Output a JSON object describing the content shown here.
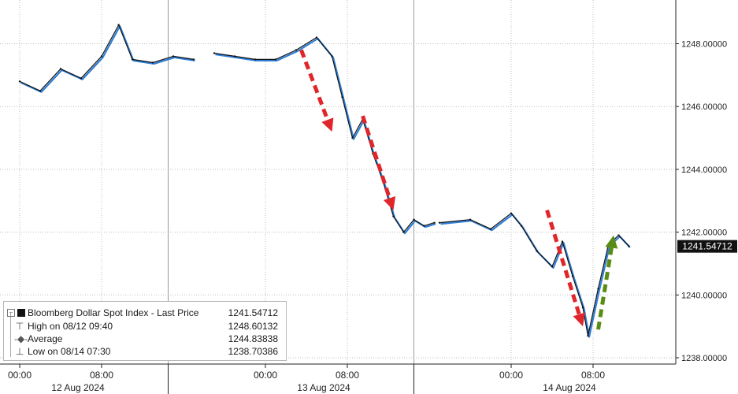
{
  "chart_data": {
    "type": "line",
    "title": "",
    "xlabel": "",
    "ylabel": "",
    "ylim": [
      1238.0,
      1249.5
    ],
    "yticks": [
      "1248.00000",
      "1246.00000",
      "1244.00000",
      "1242.00000",
      "1240.00000",
      "1238.00000"
    ],
    "ytick_values": [
      1248,
      1246,
      1244,
      1242,
      1240,
      1238
    ],
    "xtick_labels": [
      "00:00",
      "08:00",
      "00:00",
      "08:00",
      "00:00",
      "08:00"
    ],
    "date_labels": [
      "12 Aug 2024",
      "13 Aug 2024",
      "14 Aug 2024"
    ],
    "last_price_label": "1241.54712",
    "grid": true,
    "colors": {
      "price_line": "#111111",
      "price_shadow": "#2f7fd6",
      "down_arrow": "#e0262b",
      "up_arrow": "#5a8c14"
    },
    "series": [
      {
        "x": [
          "08/12 00:00",
          "08/12 02:00",
          "08/12 04:00",
          "08/12 06:00",
          "08/12 08:00",
          "08/12 09:40",
          "08/12 11:00",
          "08/12 13:00",
          "08/12 15:00",
          "08/12 17:00",
          "08/12 19:00",
          "08/12 21:00",
          "08/12 23:00",
          "08/13 01:00",
          "08/13 03:00",
          "08/13 05:00",
          "08/13 06:30",
          "08/13 07:30",
          "08/13 08:30",
          "08/13 09:30",
          "08/13 10:30",
          "08/13 11:30",
          "08/13 12:30",
          "08/13 13:30",
          "08/13 14:30",
          "08/13 15:30",
          "08/13 16:30",
          "08/13 17:00",
          "08/13 20:00",
          "08/13 22:00",
          "08/14 00:00",
          "08/14 01:00",
          "08/14 02:30",
          "08/14 04:00",
          "08/14 05:00",
          "08/14 06:00",
          "08/14 07:00",
          "08/14 07:30",
          "08/14 08:30",
          "08/14 09:30",
          "08/14 10:30",
          "08/14 11:30"
        ],
        "values": [
          1246.8,
          1246.5,
          1247.2,
          1246.9,
          1247.6,
          1248.6,
          1247.5,
          1247.4,
          1247.6,
          1247.5,
          1247.7,
          1247.6,
          1247.5,
          1247.5,
          1247.8,
          1248.2,
          1247.6,
          1246.3,
          1245.0,
          1245.6,
          1244.5,
          1243.6,
          1242.5,
          1242.0,
          1242.4,
          1242.2,
          1242.3,
          1242.3,
          1242.4,
          1242.1,
          1242.6,
          1242.2,
          1241.4,
          1240.9,
          1241.7,
          1240.6,
          1239.6,
          1238.7,
          1240.2,
          1241.6,
          1241.9,
          1241.55
        ]
      }
    ],
    "annotations": [
      {
        "type": "arrow",
        "direction": "down",
        "color": "red",
        "from": [
          "08/13 03:30",
          1247.8
        ],
        "to": [
          "08/13 06:30",
          1245.2
        ]
      },
      {
        "type": "arrow",
        "direction": "down",
        "color": "red",
        "from": [
          "08/13 09:30",
          1245.7
        ],
        "to": [
          "08/13 12:30",
          1242.7
        ]
      },
      {
        "type": "arrow",
        "direction": "down",
        "color": "red",
        "from": [
          "08/14 03:30",
          1242.7
        ],
        "to": [
          "08/14 07:00",
          1239.0
        ]
      },
      {
        "type": "arrow",
        "direction": "up",
        "color": "green",
        "from": [
          "08/14 08:30",
          1238.9
        ],
        "to": [
          "08/14 10:00",
          1241.9
        ]
      }
    ],
    "legend": {
      "placement": "bottom-left",
      "rows": [
        {
          "label": "Bloomberg Dollar Spot Index - Last Price",
          "value": "1241.54712"
        },
        {
          "label": "High on 08/12 09:40",
          "value": "1248.60132"
        },
        {
          "label": "Average",
          "value": "1244.83838"
        },
        {
          "label": "Low on 08/14 07:30",
          "value": "1238.70386"
        }
      ]
    }
  }
}
